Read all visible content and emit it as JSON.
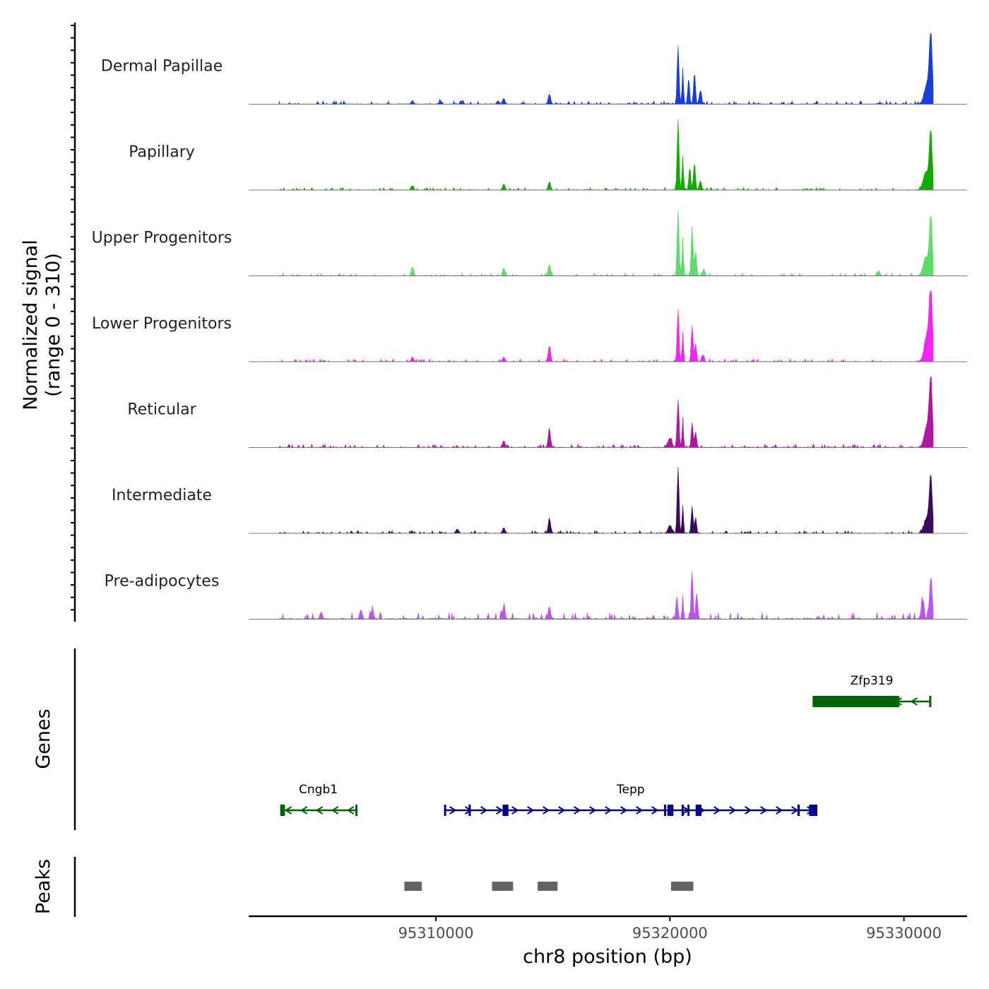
{
  "chart_data": {
    "type": "area",
    "title": "",
    "ylabel_line1": "Normalized signal",
    "ylabel_line2": "(range 0 - 310)",
    "xlabel": "chr8 position (bp)",
    "ylim": [
      0,
      310
    ],
    "xlim": [
      95302000,
      95332700
    ],
    "x_ticks": [
      95310000,
      95320000,
      95330000
    ],
    "x_tick_labels": [
      "95310000",
      "95320000",
      "95330000"
    ],
    "tracks": [
      {
        "name": "Dermal Papillae",
        "color": "#1a3fd6",
        "peaks": [
          [
            95320350,
            250,
            40
          ],
          [
            95320550,
            160,
            30
          ],
          [
            95320800,
            110,
            40
          ],
          [
            95321050,
            140,
            40
          ],
          [
            95321300,
            60,
            50
          ],
          [
            95331150,
            300,
            60
          ],
          [
            95331000,
            90,
            120
          ],
          [
            95314850,
            45,
            50
          ],
          [
            95312900,
            25,
            50
          ],
          [
            95309000,
            15,
            50
          ],
          [
            95310200,
            14,
            60
          ],
          [
            95311100,
            14,
            60
          ],
          [
            95312650,
            14,
            50
          ]
        ],
        "noise": 5
      },
      {
        "name": "Papillary",
        "color": "#12aa00",
        "peaks": [
          [
            95320350,
            300,
            40
          ],
          [
            95320550,
            140,
            30
          ],
          [
            95320850,
            100,
            40
          ],
          [
            95321050,
            120,
            40
          ],
          [
            95321300,
            40,
            50
          ],
          [
            95331150,
            250,
            60
          ],
          [
            95330950,
            80,
            120
          ],
          [
            95314850,
            35,
            50
          ],
          [
            95312900,
            25,
            50
          ],
          [
            95309000,
            20,
            50
          ]
        ],
        "noise": 4
      },
      {
        "name": "Upper Progenitors",
        "color": "#5fdb6a",
        "peaks": [
          [
            95320350,
            290,
            40
          ],
          [
            95320550,
            170,
            30
          ],
          [
            95320950,
            220,
            40
          ],
          [
            95321100,
            110,
            40
          ],
          [
            95321450,
            30,
            50
          ],
          [
            95331150,
            250,
            60
          ],
          [
            95330950,
            80,
            120
          ],
          [
            95314850,
            50,
            50
          ],
          [
            95312900,
            35,
            50
          ],
          [
            95309000,
            40,
            50
          ],
          [
            95328900,
            20,
            60
          ]
        ],
        "noise": 4
      },
      {
        "name": "Lower Progenitors",
        "color": "#f026f0",
        "peaks": [
          [
            95320350,
            230,
            40
          ],
          [
            95320550,
            130,
            30
          ],
          [
            95320950,
            160,
            40
          ],
          [
            95321100,
            80,
            40
          ],
          [
            95321400,
            30,
            50
          ],
          [
            95331150,
            320,
            60
          ],
          [
            95331000,
            120,
            120
          ],
          [
            95314850,
            70,
            50
          ],
          [
            95312900,
            20,
            50
          ],
          [
            95309000,
            20,
            50
          ]
        ],
        "noise": 4
      },
      {
        "name": "Reticular",
        "color": "#b015a6",
        "peaks": [
          [
            95320350,
            210,
            40
          ],
          [
            95320550,
            120,
            30
          ],
          [
            95320950,
            110,
            40
          ],
          [
            95321100,
            70,
            40
          ],
          [
            95320000,
            40,
            80
          ],
          [
            95331150,
            280,
            60
          ],
          [
            95331000,
            100,
            120
          ],
          [
            95314850,
            80,
            50
          ],
          [
            95312900,
            30,
            50
          ]
        ],
        "noise": 5
      },
      {
        "name": "Intermediate",
        "color": "#3b0a5c",
        "peaks": [
          [
            95320350,
            290,
            40
          ],
          [
            95320550,
            120,
            30
          ],
          [
            95320950,
            120,
            40
          ],
          [
            95321100,
            70,
            40
          ],
          [
            95320000,
            35,
            80
          ],
          [
            95331150,
            230,
            60
          ],
          [
            95331000,
            70,
            120
          ],
          [
            95314850,
            65,
            50
          ],
          [
            95312900,
            25,
            50
          ],
          [
            95310900,
            18,
            50
          ]
        ],
        "noise": 4
      },
      {
        "name": "Pre-adipocytes",
        "color": "#bb55ee",
        "peaks": [
          [
            95320300,
            100,
            40
          ],
          [
            95320550,
            90,
            30
          ],
          [
            95320950,
            210,
            40
          ],
          [
            95321150,
            110,
            40
          ],
          [
            95330800,
            80,
            60
          ],
          [
            95331150,
            175,
            60
          ],
          [
            95312900,
            55,
            50
          ],
          [
            95314850,
            55,
            50
          ],
          [
            95306800,
            40,
            50
          ],
          [
            95305100,
            30,
            50
          ],
          [
            95307300,
            35,
            50
          ]
        ],
        "noise": 10
      }
    ],
    "genes": [
      {
        "name": "Zfp319",
        "color": "#006400",
        "strand": "-",
        "row": 1,
        "start": 95326100,
        "end": 95331150,
        "exons": [
          [
            95326100,
            95329800
          ],
          [
            95331080,
            95331150
          ]
        ]
      },
      {
        "name": "Cngb1",
        "color": "#006400",
        "strand": "-",
        "row": 2,
        "start": 95303350,
        "end": 95306600,
        "exons": [
          [
            95303350,
            95303550
          ],
          [
            95306560,
            95306600
          ]
        ]
      },
      {
        "name": "Tepp",
        "color": "#00008b",
        "strand": "+",
        "row": 2,
        "start": 95310350,
        "end": 95326300,
        "exons": [
          [
            95310350,
            95310430
          ],
          [
            95311400,
            95311480
          ],
          [
            95312850,
            95313100
          ],
          [
            95319750,
            95319800
          ],
          [
            95319900,
            95320150
          ],
          [
            95320500,
            95320570
          ],
          [
            95320750,
            95320830
          ],
          [
            95321100,
            95321350
          ],
          [
            95325450,
            95325550
          ],
          [
            95325950,
            95326300
          ]
        ]
      }
    ],
    "peaks_track": [
      [
        95308650,
        95309400
      ],
      [
        95312400,
        95313300
      ],
      [
        95314350,
        95315200
      ],
      [
        95320050,
        95321000
      ]
    ],
    "track_label_genes": "Genes",
    "track_label_peaks": "Peaks"
  }
}
